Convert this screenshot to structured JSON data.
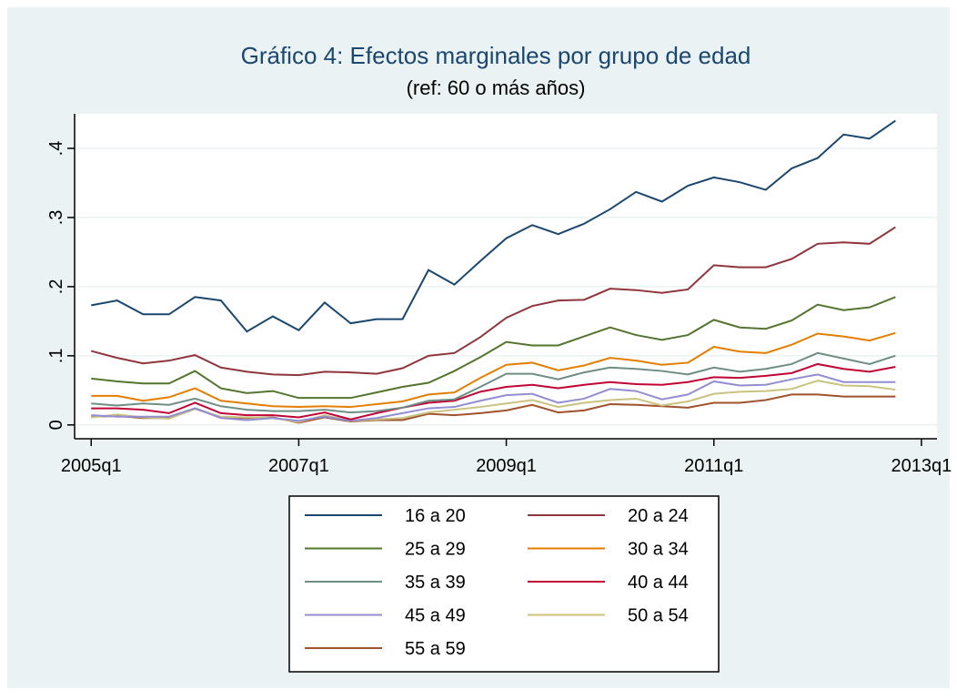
{
  "chart_data": {
    "type": "line",
    "title": "Gráfico 4: Efectos marginales por grupo de edad",
    "subtitle": "(ref: 60 o más años)",
    "x": [
      2005,
      2005.25,
      2005.5,
      2005.75,
      2006,
      2006.25,
      2006.5,
      2006.75,
      2007,
      2007.25,
      2007.5,
      2007.75,
      2008,
      2008.25,
      2008.5,
      2008.75,
      2009,
      2009.25,
      2009.5,
      2009.75,
      2010,
      2010.25,
      2010.5,
      2010.75,
      2011,
      2011.25,
      2011.5,
      2011.75,
      2012,
      2012.25,
      2012.5,
      2012.75
    ],
    "series": [
      {
        "name": "16 a 20",
        "color": "#1a476f",
        "values": [
          0.173,
          0.18,
          0.16,
          0.16,
          0.185,
          0.18,
          0.135,
          0.157,
          0.137,
          0.177,
          0.147,
          0.153,
          0.153,
          0.224,
          0.203,
          0.237,
          0.27,
          0.289,
          0.276,
          0.291,
          0.312,
          0.337,
          0.323,
          0.346,
          0.358,
          0.351,
          0.34,
          0.371,
          0.386,
          0.42,
          0.414,
          0.44
        ]
      },
      {
        "name": "20 a 24",
        "color": "#90353b",
        "values": [
          0.107,
          0.097,
          0.089,
          0.093,
          0.101,
          0.083,
          0.077,
          0.073,
          0.072,
          0.077,
          0.076,
          0.074,
          0.082,
          0.1,
          0.104,
          0.127,
          0.155,
          0.172,
          0.18,
          0.181,
          0.197,
          0.195,
          0.191,
          0.196,
          0.231,
          0.228,
          0.228,
          0.24,
          0.262,
          0.264,
          0.262,
          0.286
        ]
      },
      {
        "name": "25 a 29",
        "color": "#55752f",
        "values": [
          0.067,
          0.063,
          0.06,
          0.06,
          0.078,
          0.053,
          0.046,
          0.049,
          0.039,
          0.039,
          0.039,
          0.047,
          0.055,
          0.061,
          0.078,
          0.098,
          0.12,
          0.115,
          0.115,
          0.128,
          0.141,
          0.13,
          0.123,
          0.13,
          0.152,
          0.141,
          0.139,
          0.151,
          0.174,
          0.166,
          0.17,
          0.185
        ]
      },
      {
        "name": "30 a 34",
        "color": "#e37e00",
        "values": [
          0.042,
          0.042,
          0.035,
          0.04,
          0.053,
          0.035,
          0.031,
          0.027,
          0.026,
          0.027,
          0.026,
          0.03,
          0.034,
          0.044,
          0.047,
          0.068,
          0.087,
          0.09,
          0.079,
          0.086,
          0.097,
          0.093,
          0.087,
          0.09,
          0.113,
          0.106,
          0.104,
          0.116,
          0.132,
          0.128,
          0.122,
          0.133
        ]
      },
      {
        "name": "35 a 39",
        "color": "#6e8e84",
        "values": [
          0.031,
          0.028,
          0.031,
          0.029,
          0.038,
          0.027,
          0.022,
          0.02,
          0.02,
          0.022,
          0.018,
          0.02,
          0.025,
          0.035,
          0.037,
          0.055,
          0.074,
          0.074,
          0.066,
          0.076,
          0.083,
          0.081,
          0.078,
          0.073,
          0.083,
          0.077,
          0.081,
          0.088,
          0.104,
          0.096,
          0.088,
          0.1
        ]
      },
      {
        "name": "40 a 44",
        "color": "#c10534",
        "values": [
          0.024,
          0.024,
          0.022,
          0.017,
          0.032,
          0.017,
          0.014,
          0.014,
          0.011,
          0.018,
          0.008,
          0.017,
          0.025,
          0.032,
          0.035,
          0.048,
          0.055,
          0.058,
          0.053,
          0.058,
          0.062,
          0.059,
          0.058,
          0.062,
          0.069,
          0.068,
          0.071,
          0.075,
          0.088,
          0.081,
          0.077,
          0.084
        ]
      },
      {
        "name": "45 a 49",
        "color": "#938dd2",
        "values": [
          0.014,
          0.012,
          0.012,
          0.012,
          0.024,
          0.01,
          0.007,
          0.01,
          0.006,
          0.012,
          0.006,
          0.01,
          0.017,
          0.024,
          0.026,
          0.035,
          0.043,
          0.045,
          0.032,
          0.038,
          0.052,
          0.049,
          0.037,
          0.044,
          0.063,
          0.057,
          0.058,
          0.066,
          0.073,
          0.062,
          0.062,
          0.062
        ]
      },
      {
        "name": "50 a 54",
        "color": "#cac27e",
        "values": [
          0.011,
          0.015,
          0.011,
          0.009,
          0.023,
          0.012,
          0.011,
          0.01,
          0.004,
          0.014,
          0.006,
          0.008,
          0.01,
          0.018,
          0.022,
          0.026,
          0.031,
          0.036,
          0.026,
          0.032,
          0.036,
          0.038,
          0.028,
          0.034,
          0.045,
          0.048,
          0.049,
          0.052,
          0.064,
          0.057,
          0.056,
          0.051
        ]
      },
      {
        "name": "55 a 59",
        "color": "#a0522d",
        "values": [
          0.012,
          0.013,
          0.01,
          0.01,
          0.024,
          0.011,
          0.01,
          0.011,
          0.003,
          0.011,
          0.005,
          0.007,
          0.007,
          0.016,
          0.014,
          0.017,
          0.021,
          0.029,
          0.018,
          0.021,
          0.03,
          0.029,
          0.027,
          0.025,
          0.032,
          0.032,
          0.036,
          0.044,
          0.044,
          0.041,
          0.041,
          0.041
        ]
      }
    ],
    "xlim": [
      2004.84,
      2013.15
    ],
    "xticks": [
      {
        "value": 2005,
        "label": "2005q1"
      },
      {
        "value": 2007,
        "label": "2007q1"
      },
      {
        "value": 2009,
        "label": "2009q1"
      },
      {
        "value": 2011,
        "label": "2011q1"
      },
      {
        "value": 2013,
        "label": "2013q1"
      }
    ],
    "ylim": [
      -0.02,
      0.45
    ],
    "yticks": [
      0,
      {
        "value": 0.1,
        "label": ".1"
      },
      {
        "value": 0.2,
        "label": ".2"
      },
      {
        "value": 0.3,
        "label": ".3"
      },
      {
        "value": 0.4,
        "label": ".4"
      }
    ],
    "grid": true,
    "legend": "bottom"
  }
}
